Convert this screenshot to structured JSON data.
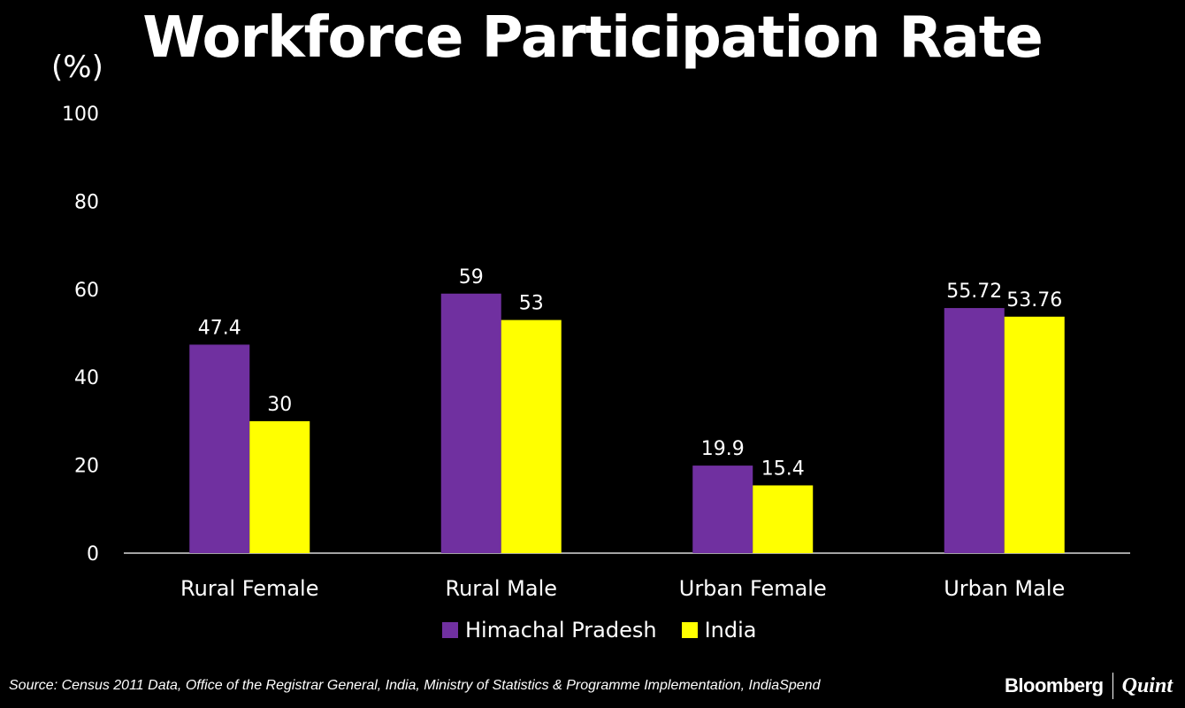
{
  "chart_data": {
    "type": "bar",
    "title": "Workforce Participation Rate",
    "unit_label": "(%)",
    "categories": [
      "Rural Female",
      "Rural Male",
      "Urban Female",
      "Urban Male"
    ],
    "series": [
      {
        "name": "Himachal Pradesh",
        "color": "#7030a0",
        "values": [
          47.4,
          59,
          19.9,
          55.72
        ],
        "labels": [
          "47.4",
          "59",
          "19.9",
          "55.72"
        ]
      },
      {
        "name": "India",
        "color": "#ffff00",
        "values": [
          30,
          53,
          15.4,
          53.76
        ],
        "labels": [
          "30",
          "53",
          "15.4",
          "53.76"
        ]
      }
    ],
    "ylim": [
      0,
      100
    ],
    "yticks": [
      0,
      20,
      40,
      60,
      80,
      100
    ],
    "grid": false,
    "legend_position": "bottom"
  },
  "source": "Source: Census 2011 Data, Office of the Registrar General, India, Ministry of Statistics & Programme Implementation, IndiaSpend",
  "logo": {
    "left": "Bloomberg",
    "right": "Quint"
  }
}
